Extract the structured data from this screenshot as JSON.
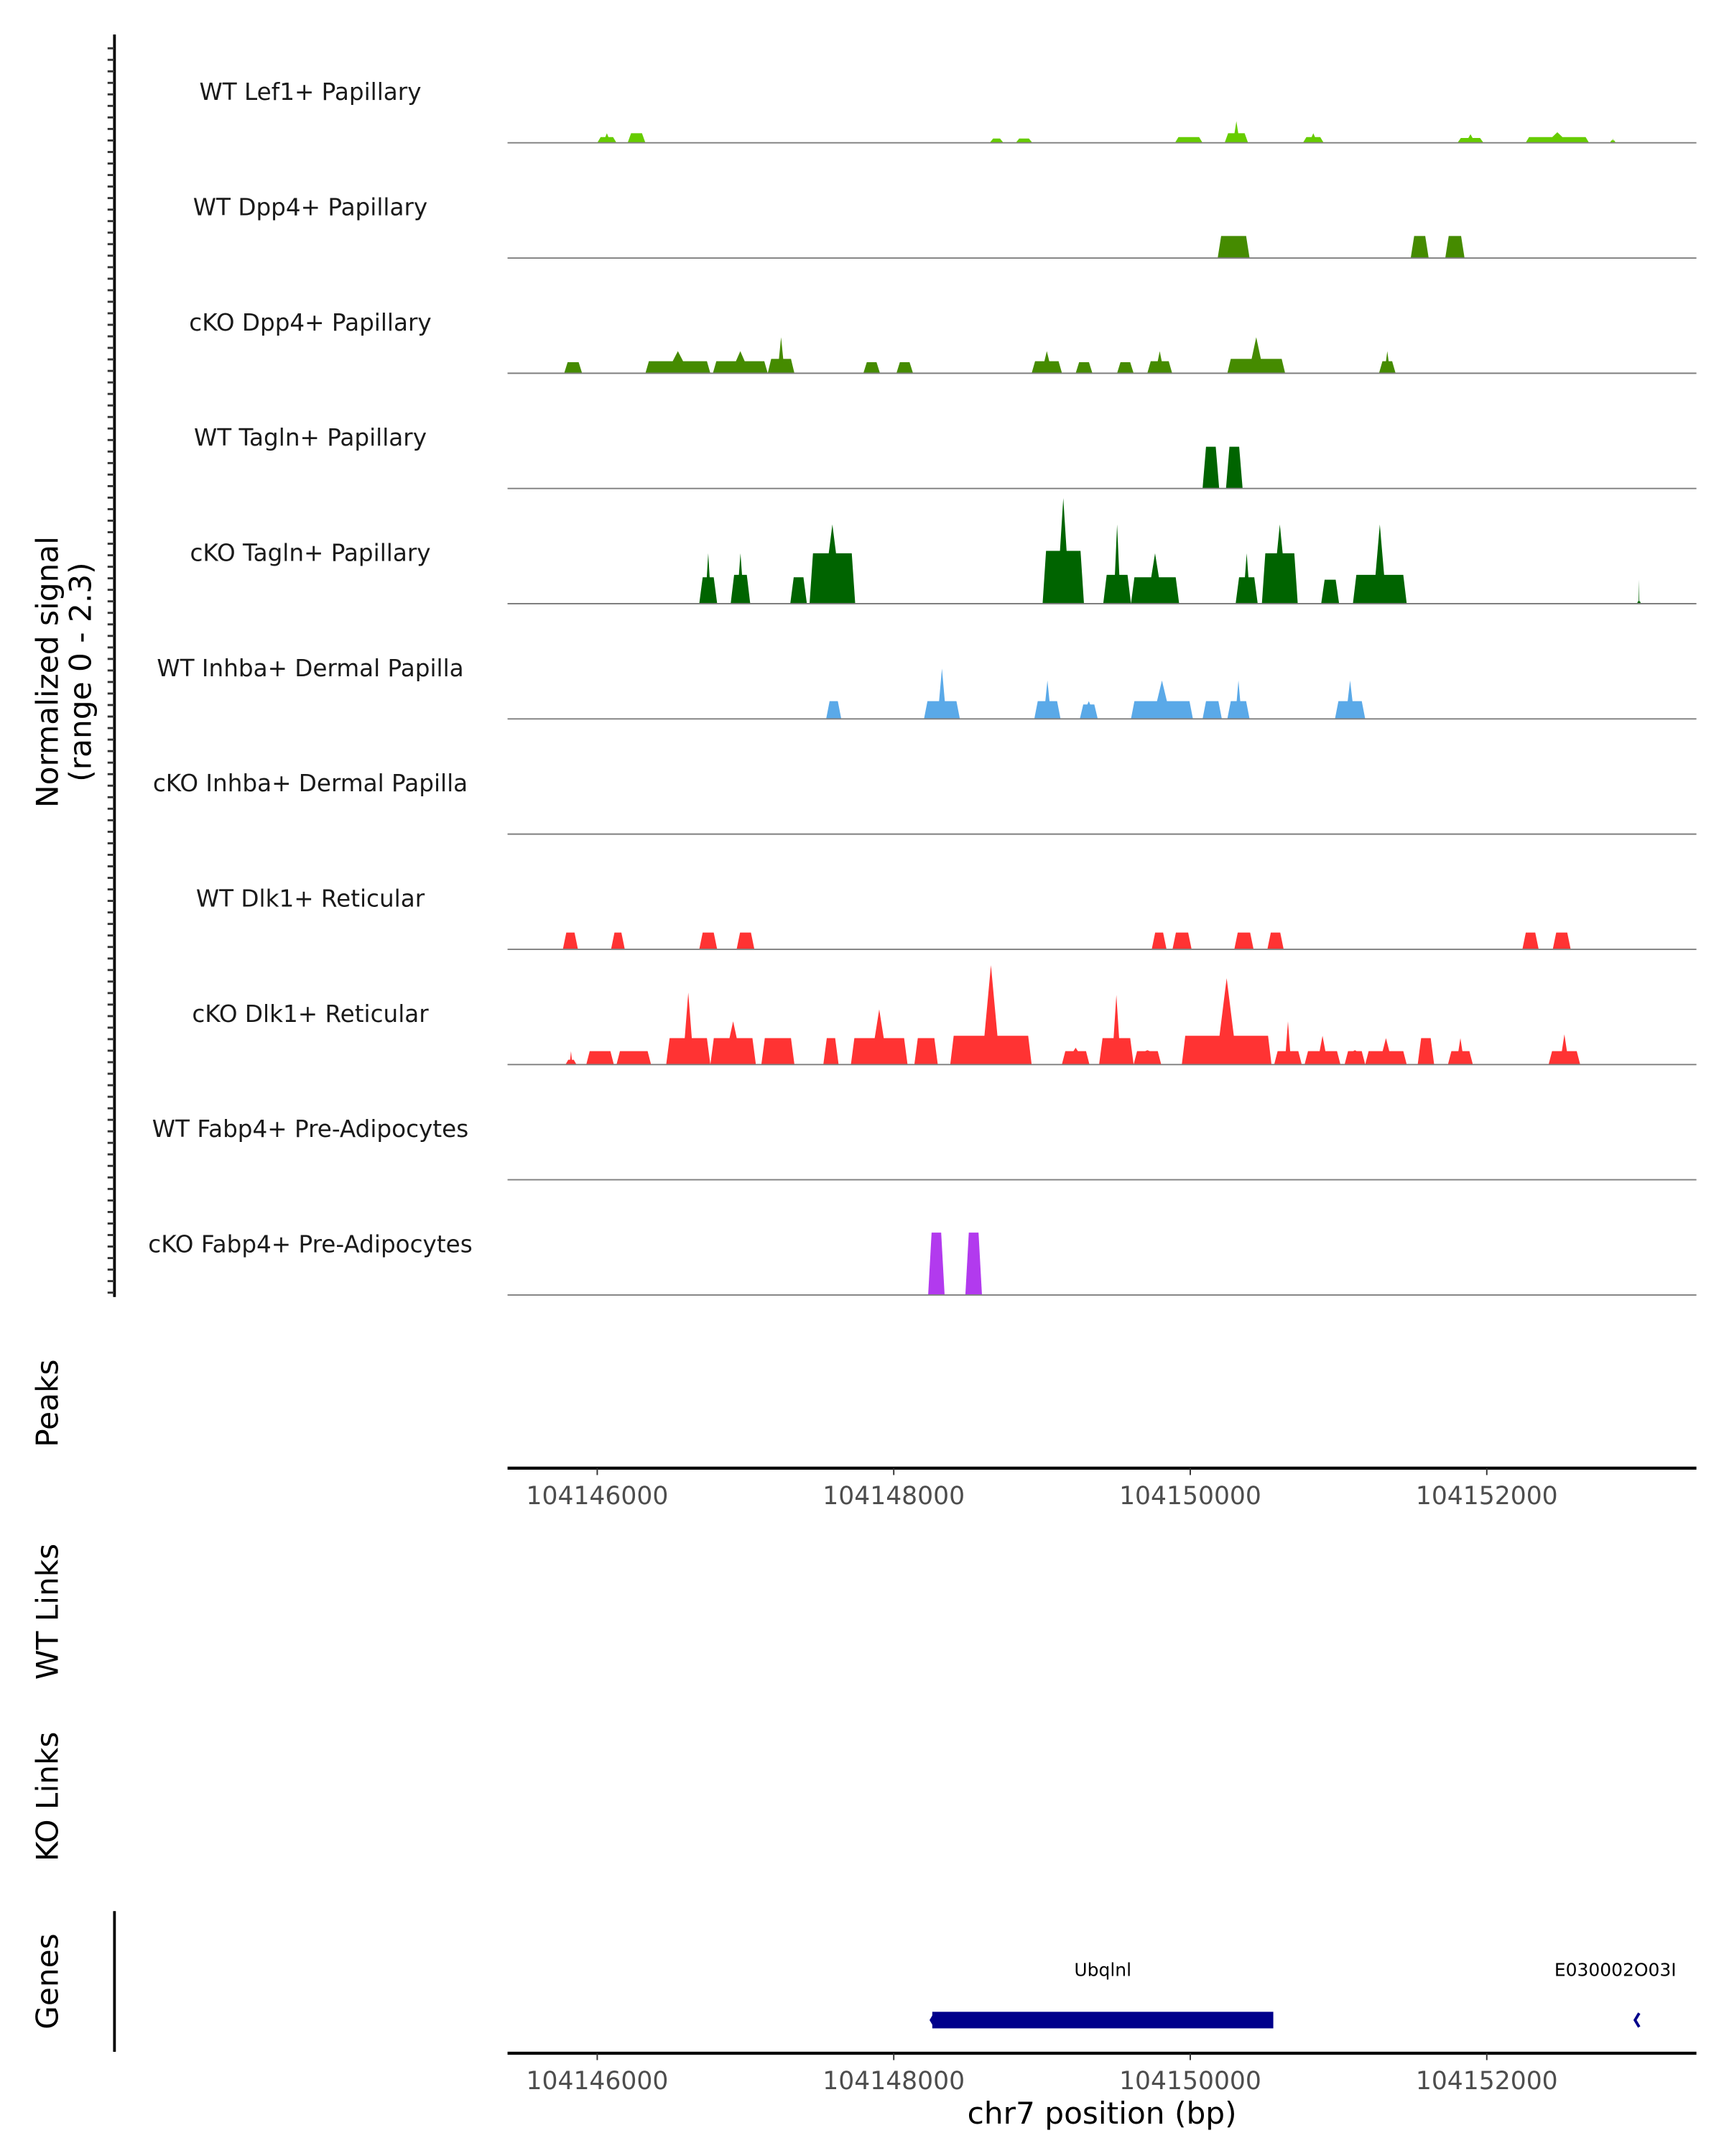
{
  "chart_data": {
    "type": "area",
    "title": "",
    "xlabel": "chr7 position (bp)",
    "ylabel": "Normalized signal",
    "ylabel_sub": "(range 0 - 2.3)",
    "ylim": [
      0,
      2.3
    ],
    "xlim": [
      104145395,
      104153414
    ],
    "xticks": [
      104146000,
      104148000,
      104150000,
      104152000
    ],
    "xtick_labels": [
      "104146000",
      "104148000",
      "104150000",
      "104152000"
    ],
    "peak_format": "[start_bp, end_bp, plateau_signal, max_signal]",
    "tracks": [
      {
        "name": "WT Lef1+ Papillary",
        "color": "#66CC00",
        "peaks": [
          [
            104146000,
            104146130,
            0.12,
            0.2
          ],
          [
            104146205,
            104146325,
            0.2,
            0.2
          ],
          [
            104148647,
            104148740,
            0.09,
            0.09
          ],
          [
            104148823,
            104148935,
            0.09,
            0.09
          ],
          [
            104149897,
            104150083,
            0.12,
            0.12
          ],
          [
            104150232,
            104150390,
            0.2,
            0.45
          ],
          [
            104150760,
            104150900,
            0.12,
            0.2
          ],
          [
            104151802,
            104151978,
            0.1,
            0.18
          ],
          [
            104152262,
            104152690,
            0.12,
            0.22
          ],
          [
            104152830,
            104152870,
            0.05,
            0.09
          ]
        ]
      },
      {
        "name": "WT Dpp4+ Papillary",
        "color": "#458B00",
        "peaks": [
          [
            104150185,
            104150400,
            0.46,
            0.46
          ],
          [
            104151487,
            104151608,
            0.46,
            0.46
          ],
          [
            104151720,
            104151850,
            0.46,
            0.46
          ]
        ]
      },
      {
        "name": "cKO Dpp4+ Papillary",
        "color": "#458B00",
        "peaks": [
          [
            104145777,
            104145898,
            0.23,
            0.23
          ],
          [
            104146325,
            104146763,
            0.25,
            0.46
          ],
          [
            104146780,
            104147150,
            0.25,
            0.46
          ],
          [
            104147150,
            104147330,
            0.3,
            0.75
          ],
          [
            104147795,
            104147907,
            0.23,
            0.23
          ],
          [
            104148018,
            104148130,
            0.23,
            0.23
          ],
          [
            104148930,
            104149135,
            0.25,
            0.46
          ],
          [
            104149227,
            104149340,
            0.23,
            0.23
          ],
          [
            104149506,
            104149618,
            0.23,
            0.23
          ],
          [
            104149710,
            104149878,
            0.25,
            0.46
          ],
          [
            104150250,
            104150640,
            0.3,
            0.75
          ],
          [
            104151273,
            104151385,
            0.25,
            0.46
          ]
        ]
      },
      {
        "name": "WT Tagln+ Papillary",
        "color": "#006400",
        "peaks": [
          [
            104150083,
            104150195,
            0.87,
            0.87
          ],
          [
            104150241,
            104150353,
            0.87,
            0.87
          ]
        ]
      },
      {
        "name": "cKO Tagln+ Papillary",
        "color": "#006400",
        "peaks": [
          [
            104146688,
            104146809,
            0.55,
            1.05
          ],
          [
            104146900,
            104147032,
            0.6,
            1.05
          ],
          [
            104147302,
            104147414,
            0.55,
            0.55
          ],
          [
            104147432,
            104147740,
            1.05,
            1.65
          ],
          [
            104149004,
            104149283,
            1.1,
            2.2
          ],
          [
            104149413,
            104149600,
            0.6,
            1.65
          ],
          [
            104149600,
            104149925,
            0.55,
            1.05
          ],
          [
            104150306,
            104150455,
            0.55,
            1.05
          ],
          [
            104150483,
            104150725,
            1.05,
            1.65
          ],
          [
            104150883,
            104151004,
            0.5,
            0.5
          ],
          [
            104151097,
            104151460,
            0.6,
            1.65
          ],
          [
            104153013,
            104153040,
            0.05,
            0.5
          ]
        ]
      },
      {
        "name": "WT Inhba+ Dermal Papilla",
        "color": "#5AA9E8",
        "peaks": [
          [
            104147544,
            104147646,
            0.37,
            0.37
          ],
          [
            104148204,
            104148446,
            0.37,
            1.05
          ],
          [
            104148948,
            104149125,
            0.37,
            0.8
          ],
          [
            104149255,
            104149376,
            0.3,
            0.37
          ],
          [
            104149600,
            104150018,
            0.37,
            0.8
          ],
          [
            104150083,
            104150213,
            0.37,
            0.37
          ],
          [
            104150250,
            104150400,
            0.37,
            0.8
          ],
          [
            104150976,
            104151180,
            0.37,
            0.8
          ]
        ]
      },
      {
        "name": "cKO Inhba+ Dermal Papilla",
        "color": "#5AA9E8",
        "peaks": []
      },
      {
        "name": "WT Dlk1+ Reticular",
        "color": "#FF3333",
        "peaks": [
          [
            104145768,
            104145870,
            0.35,
            0.35
          ],
          [
            104146093,
            104146186,
            0.35,
            0.35
          ],
          [
            104146688,
            104146809,
            0.35,
            0.35
          ],
          [
            104146940,
            104147060,
            0.35,
            0.35
          ],
          [
            104149740,
            104149840,
            0.35,
            0.35
          ],
          [
            104149880,
            104150009,
            0.35,
            0.35
          ],
          [
            104150297,
            104150427,
            0.35,
            0.35
          ],
          [
            104150520,
            104150630,
            0.35,
            0.35
          ],
          [
            104152240,
            104152350,
            0.35,
            0.35
          ],
          [
            104152445,
            104152566,
            0.35,
            0.35
          ]
        ]
      },
      {
        "name": "cKO Dlk1+ Reticular",
        "color": "#FF3333",
        "peaks": [
          [
            104145786,
            104145860,
            0.1,
            0.28
          ],
          [
            104145926,
            104146112,
            0.28,
            0.28
          ],
          [
            104146130,
            104146363,
            0.28,
            0.28
          ],
          [
            104146465,
            104146763,
            0.55,
            1.5
          ],
          [
            104146763,
            104147070,
            0.55,
            0.9
          ],
          [
            104147107,
            104147330,
            0.55,
            0.55
          ],
          [
            104147525,
            104147628,
            0.55,
            0.55
          ],
          [
            104147711,
            104148093,
            0.55,
            1.15
          ],
          [
            104148139,
            104148297,
            0.55,
            0.55
          ],
          [
            104148381,
            104148930,
            0.6,
            2.07
          ],
          [
            104149134,
            104149320,
            0.28,
            0.35
          ],
          [
            104149385,
            104149618,
            0.55,
            1.45
          ],
          [
            104149618,
            104149804,
            0.28,
            0.3
          ],
          [
            104149943,
            104150548,
            0.6,
            1.8
          ],
          [
            104150566,
            104150752,
            0.28,
            0.9
          ],
          [
            104150771,
            104151013,
            0.28,
            0.6
          ],
          [
            104151041,
            104151180,
            0.28,
            0.3
          ],
          [
            104151180,
            104151460,
            0.28,
            0.55
          ],
          [
            104151534,
            104151645,
            0.55,
            0.55
          ],
          [
            104151738,
            104151906,
            0.28,
            0.55
          ],
          [
            104152417,
            104152630,
            0.28,
            0.63
          ]
        ]
      },
      {
        "name": "WT Fabp4+ Pre-Adipocytes",
        "color": "#B23AEE",
        "peaks": []
      },
      {
        "name": "cKO Fabp4+ Pre-Adipocytes",
        "color": "#B23AEE",
        "peaks": [
          [
            104148232,
            104148343,
            1.3,
            1.3
          ],
          [
            104148483,
            104148595,
            1.3,
            1.3
          ]
        ]
      }
    ],
    "panels": {
      "peaks": "Peaks",
      "wt_links": "WT Links",
      "ko_links": "KO Links",
      "genes": "Genes"
    },
    "genes": [
      {
        "name": "Ubqlnl",
        "start": 104148260,
        "end": 104150560,
        "strand": "-",
        "color": "#00008B"
      },
      {
        "name": "E030002O03Rik",
        "label_shown": "E030002O03I",
        "start": 104153000,
        "end": 104153030,
        "strand": "-",
        "color": "#00008B"
      }
    ]
  }
}
